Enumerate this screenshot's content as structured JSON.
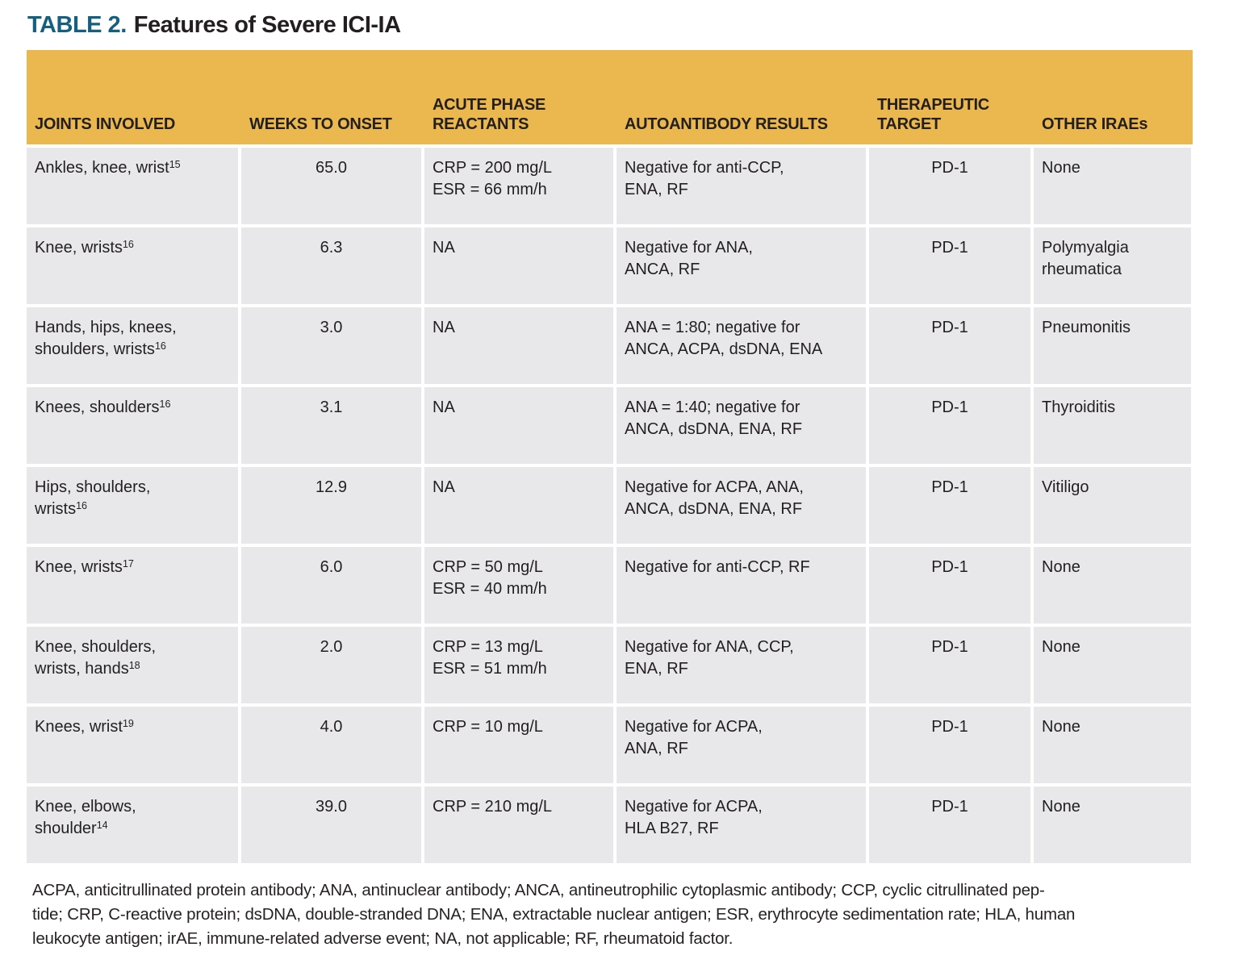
{
  "title": {
    "label": "TABLE 2.",
    "text": "Features of Severe ICI-IA"
  },
  "colors": {
    "header_bg": "#EBB84F",
    "row_bg": "#E8E8EA",
    "title_accent": "#15607F",
    "text": "#231F20"
  },
  "table": {
    "columns": [
      {
        "label": "JOINTS INVOLVED"
      },
      {
        "label": "WEEKS TO ONSET"
      },
      {
        "label": "ACUTE PHASE\nREACTANTS"
      },
      {
        "label": "AUTOANTIBODY RESULTS"
      },
      {
        "label": "THERAPEUTIC\nTARGET"
      },
      {
        "label": "OTHER IRAEs"
      }
    ],
    "rows": [
      {
        "joints": "Ankles, knee, wrist",
        "ref": "15",
        "weeks": "65.0",
        "acute": "CRP = 200 mg/L\nESR = 66 mm/h",
        "autoantibody": "Negative for anti-CCP,\nENA, RF",
        "target": "PD-1",
        "other": "None"
      },
      {
        "joints": "Knee, wrists",
        "ref": "16",
        "weeks": "6.3",
        "acute": "NA",
        "autoantibody": "Negative for ANA,\nANCA, RF",
        "target": "PD-1",
        "other": "Polymyalgia\nrheumatica"
      },
      {
        "joints": "Hands, hips, knees,\nshoulders, wrists",
        "ref": "16",
        "weeks": "3.0",
        "acute": "NA",
        "autoantibody": "ANA = 1:80; negative for\nANCA, ACPA, dsDNA, ENA",
        "target": "PD-1",
        "other": "Pneumonitis"
      },
      {
        "joints": "Knees, shoulders",
        "ref": "16",
        "weeks": "3.1",
        "acute": "NA",
        "autoantibody": "ANA = 1:40; negative for\nANCA, dsDNA, ENA, RF",
        "target": "PD-1",
        "other": "Thyroiditis"
      },
      {
        "joints": "Hips, shoulders,\nwrists",
        "ref": "16",
        "weeks": "12.9",
        "acute": "NA",
        "autoantibody": "Negative for ACPA, ANA,\nANCA, dsDNA, ENA, RF",
        "target": "PD-1",
        "other": "Vitiligo"
      },
      {
        "joints": "Knee, wrists",
        "ref": "17",
        "weeks": "6.0",
        "acute": "CRP = 50 mg/L\nESR = 40 mm/h",
        "autoantibody": "Negative for anti-CCP, RF",
        "target": "PD-1",
        "other": "None"
      },
      {
        "joints": "Knee, shoulders,\nwrists, hands",
        "ref": "18",
        "weeks": "2.0",
        "acute": "CRP = 13 mg/L\nESR = 51 mm/h",
        "autoantibody": "Negative for ANA, CCP,\nENA, RF",
        "target": "PD-1",
        "other": "None"
      },
      {
        "joints": "Knees, wrist",
        "ref": "19",
        "weeks": "4.0",
        "acute": "CRP = 10 mg/L",
        "autoantibody": "Negative for ACPA,\nANA, RF",
        "target": "PD-1",
        "other": "None"
      },
      {
        "joints": "Knee, elbows,\nshoulder",
        "ref": "14",
        "weeks": "39.0",
        "acute": "CRP = 210 mg/L",
        "autoantibody": "Negative for ACPA,\nHLA B27, RF",
        "target": "PD-1",
        "other": "None"
      }
    ]
  },
  "footnote": {
    "lines": [
      "ACPA, anticitrullinated protein antibody; ANA, antinuclear antibody; ANCA, antineutrophilic cytoplasmic antibody; CCP, cyclic citrullinated pep-",
      "tide; CRP, C-reactive protein; dsDNA, double-stranded DNA; ENA, extractable nuclear antigen; ESR, erythrocyte sedimentation rate; HLA, human",
      "leukocyte antigen; irAE, immune-related adverse event; NA, not applicable; RF, rheumatoid factor."
    ]
  }
}
